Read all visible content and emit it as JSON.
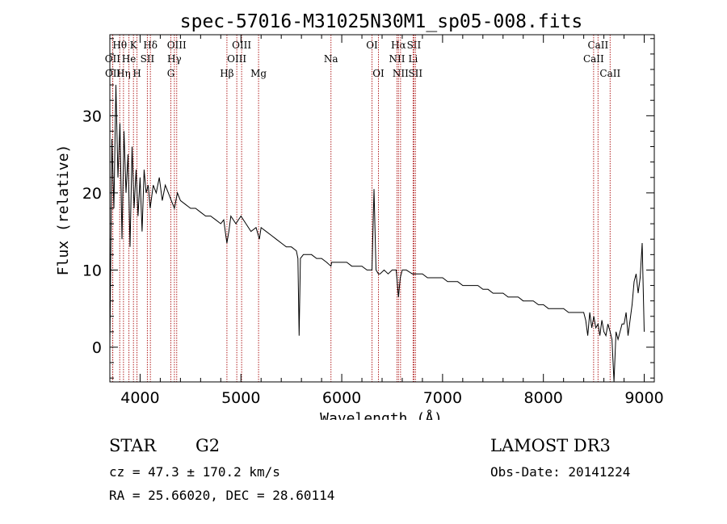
{
  "chart_data": {
    "type": "line",
    "title": "spec-57016-M31025N30M1_sp05-008.fits",
    "xlabel": "Wavelength (Å)",
    "ylabel": "Flux (relative)",
    "xlim": [
      3700,
      9100
    ],
    "ylim": [
      -4.5,
      40.5
    ],
    "xticks": [
      4000,
      5000,
      6000,
      7000,
      8000,
      9000
    ],
    "yticks": [
      0,
      10,
      20,
      30
    ],
    "series": [
      {
        "name": "spectrum",
        "x": [
          3700,
          3720,
          3740,
          3760,
          3780,
          3800,
          3820,
          3840,
          3860,
          3880,
          3900,
          3920,
          3940,
          3960,
          3980,
          4000,
          4020,
          4040,
          4060,
          4080,
          4100,
          4130,
          4160,
          4190,
          4220,
          4250,
          4280,
          4310,
          4340,
          4370,
          4400,
          4450,
          4500,
          4550,
          4600,
          4650,
          4700,
          4750,
          4800,
          4830,
          4850,
          4861,
          4880,
          4900,
          4950,
          5000,
          5050,
          5100,
          5150,
          5183,
          5200,
          5250,
          5300,
          5350,
          5400,
          5450,
          5500,
          5550,
          5565,
          5577,
          5590,
          5620,
          5650,
          5700,
          5750,
          5800,
          5850,
          5893,
          5900,
          5950,
          6000,
          6050,
          6100,
          6150,
          6200,
          6250,
          6280,
          6300,
          6320,
          6340,
          6364,
          6380,
          6420,
          6460,
          6500,
          6540,
          6563,
          6580,
          6600,
          6640,
          6700,
          6750,
          6800,
          6850,
          6900,
          6950,
          7000,
          7050,
          7100,
          7150,
          7200,
          7250,
          7300,
          7350,
          7400,
          7450,
          7500,
          7550,
          7600,
          7650,
          7700,
          7750,
          7800,
          7850,
          7900,
          7950,
          8000,
          8050,
          8100,
          8150,
          8200,
          8250,
          8300,
          8350,
          8400,
          8420,
          8440,
          8460,
          8480,
          8500,
          8520,
          8542,
          8560,
          8580,
          8600,
          8620,
          8640,
          8662,
          8680,
          8700,
          8720,
          8740,
          8760,
          8780,
          8800,
          8820,
          8840,
          8860,
          8880,
          8900,
          8920,
          8940,
          8960,
          8980,
          9000
        ],
        "values": [
          0,
          27,
          18,
          34,
          22,
          29,
          14,
          28,
          20,
          25,
          13,
          26,
          18,
          23,
          17,
          22,
          15,
          23,
          20,
          21,
          18,
          21,
          20,
          22,
          19,
          21,
          20,
          19,
          18,
          20,
          19,
          18.5,
          18,
          18,
          17.5,
          17,
          17,
          16.5,
          16,
          16.5,
          14.5,
          13.5,
          15,
          17,
          16,
          17,
          16,
          15,
          15.5,
          14,
          15.5,
          15,
          14.5,
          14,
          13.5,
          13,
          13,
          12.5,
          11.5,
          1.5,
          11.5,
          12,
          12,
          12,
          11.5,
          11.5,
          11,
          10.5,
          11,
          11,
          11,
          11,
          10.5,
          10.5,
          10.5,
          10,
          10,
          10,
          20.5,
          10,
          9.5,
          9.5,
          10,
          9.5,
          10,
          10,
          6.5,
          9,
          10,
          10,
          9.5,
          9.5,
          9.5,
          9,
          9,
          9,
          9,
          8.5,
          8.5,
          8.5,
          8,
          8,
          8,
          8,
          7.5,
          7.5,
          7,
          7,
          7,
          6.5,
          6.5,
          6.5,
          6,
          6,
          6,
          5.5,
          5.5,
          5,
          5,
          5,
          5,
          4.5,
          4.5,
          4.5,
          4.5,
          3.5,
          1.5,
          4.5,
          2.5,
          4,
          2.5,
          3,
          1.5,
          3.5,
          2,
          1.5,
          3,
          2,
          1,
          -4.5,
          2,
          1,
          2,
          3,
          3,
          4.5,
          1.5,
          3.5,
          5.5,
          8.5,
          9.5,
          7,
          9,
          13.5,
          2
        ]
      }
    ],
    "emission_lines": [
      {
        "label": "Hθ",
        "wavelength": 3798,
        "row": 1
      },
      {
        "label": "OII",
        "wavelength": 3727,
        "row": 2
      },
      {
        "label": "OII",
        "wavelength": 3729,
        "row": 3
      },
      {
        "label": "Hη",
        "wavelength": 3835,
        "row": 3
      },
      {
        "label": "K",
        "wavelength": 3934,
        "row": 1
      },
      {
        "label": "He",
        "wavelength": 3889,
        "row": 2
      },
      {
        "label": "H",
        "wavelength": 3969,
        "row": 3
      },
      {
        "label": "Hδ",
        "wavelength": 4102,
        "row": 1
      },
      {
        "label": "SII",
        "wavelength": 4072,
        "row": 2
      },
      {
        "label": "OIII",
        "wavelength": 4363,
        "row": 1
      },
      {
        "label": "Hγ",
        "wavelength": 4340,
        "row": 2
      },
      {
        "label": "G",
        "wavelength": 4305,
        "row": 3
      },
      {
        "label": "Hβ",
        "wavelength": 4861,
        "row": 3
      },
      {
        "label": "OIII",
        "wavelength": 5007,
        "row": 1
      },
      {
        "label": "OIII",
        "wavelength": 4959,
        "row": 2
      },
      {
        "label": "Mg",
        "wavelength": 5175,
        "row": 3
      },
      {
        "label": "Na",
        "wavelength": 5893,
        "row": 2
      },
      {
        "label": "OI",
        "wavelength": 6300,
        "row": 1
      },
      {
        "label": "OI",
        "wavelength": 6364,
        "row": 3
      },
      {
        "label": "Hα",
        "wavelength": 6563,
        "row": 1
      },
      {
        "label": "SII",
        "wavelength": 6716,
        "row": 1
      },
      {
        "label": "NII",
        "wavelength": 6548,
        "row": 2
      },
      {
        "label": "Li",
        "wavelength": 6708,
        "row": 2
      },
      {
        "label": "NII",
        "wavelength": 6583,
        "row": 3
      },
      {
        "label": "SII",
        "wavelength": 6731,
        "row": 3
      },
      {
        "label": "CaII",
        "wavelength": 8542,
        "row": 1
      },
      {
        "label": "CaII",
        "wavelength": 8498,
        "row": 2
      },
      {
        "label": "CaII",
        "wavelength": 8662,
        "row": 3
      }
    ]
  },
  "info": {
    "object_class": "STAR",
    "subclass": "G2",
    "survey": "LAMOST DR3",
    "redshift": "cz = 47.3 ± 170.2 km/s",
    "obs_date": "Obs-Date: 20141224",
    "coords": "RA =  25.66020, DEC =  28.60114"
  },
  "colors": {
    "line_marker": "#b22222",
    "spectrum": "#000000"
  }
}
